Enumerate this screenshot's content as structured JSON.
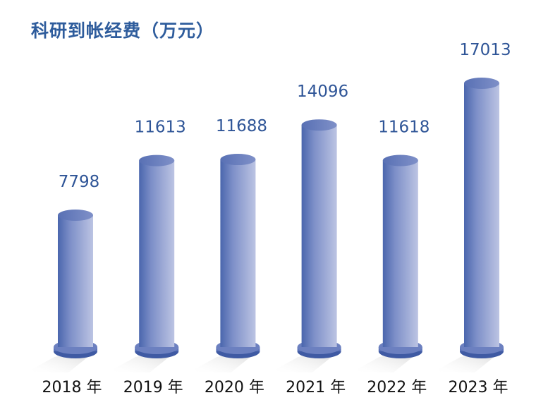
{
  "chart_data": {
    "type": "bar",
    "title": "科研到帐经费（万元）",
    "categories": [
      "2018 年",
      "2019 年",
      "2020 年",
      "2021 年",
      "2022 年",
      "2023 年"
    ],
    "values": [
      7798,
      11613,
      11688,
      14096,
      11618,
      17013
    ],
    "xlabel": "",
    "ylabel": "",
    "grid": false,
    "bar_style": "3d-cylinder",
    "colors": {
      "bar_dark": "#4a66ad",
      "bar_light": "#b7c0e0",
      "label": "#2f5597",
      "title": "#2e5c9c"
    }
  }
}
